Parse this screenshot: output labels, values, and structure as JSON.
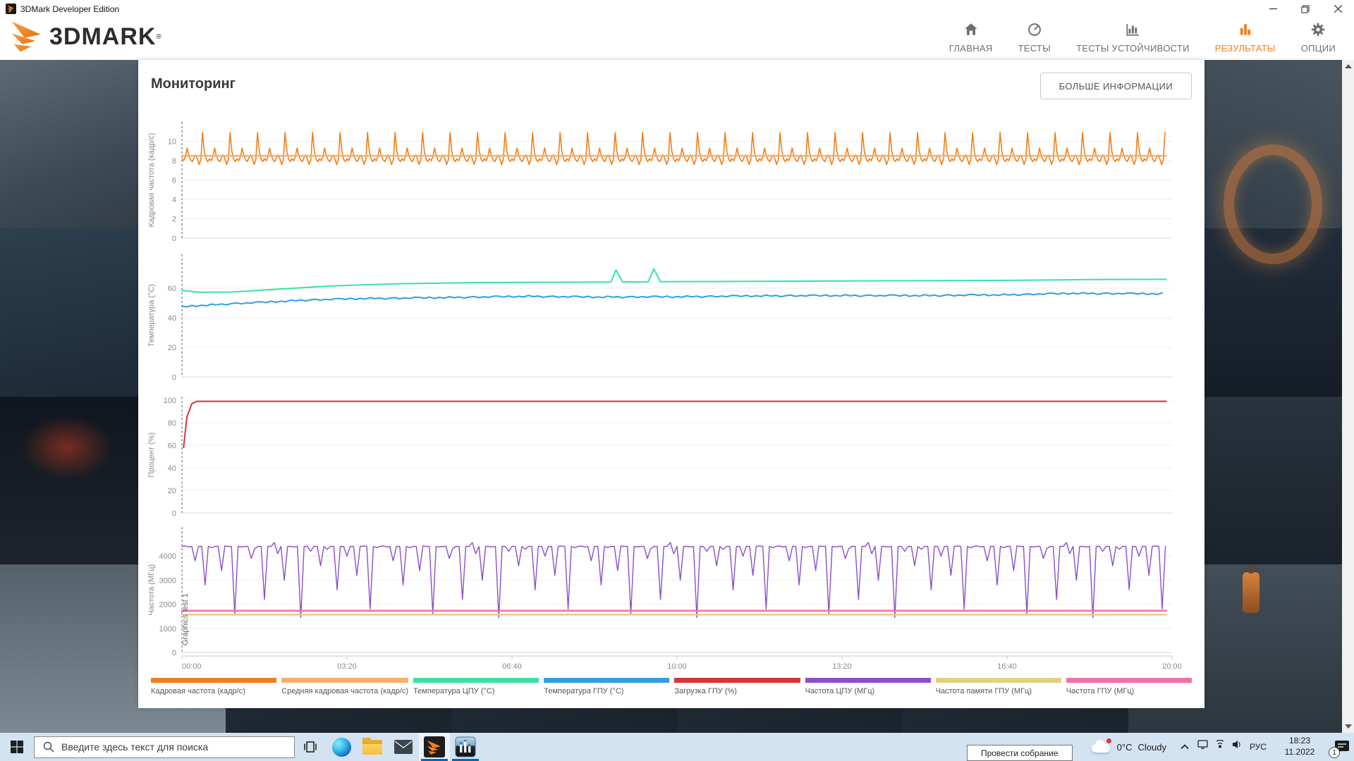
{
  "window": {
    "title": "3DMark Developer Edition"
  },
  "header": {
    "logo_text": "3DMARK",
    "logo_reg": "®",
    "nav": [
      {
        "label": "ГЛАВНАЯ",
        "icon": "home",
        "active": false
      },
      {
        "label": "ТЕСТЫ",
        "icon": "gauge",
        "active": false
      },
      {
        "label": "ТЕСТЫ УСТОЙЧИВОСТИ",
        "icon": "chart-axis",
        "active": false
      },
      {
        "label": "РЕЗУЛЬТАТЫ",
        "icon": "bar-chart",
        "active": true
      },
      {
        "label": "ОПЦИИ",
        "icon": "gear",
        "active": false
      }
    ]
  },
  "page": {
    "title": "Мониторинг",
    "more_info_button": "БОЛЬШЕ ИНФОРМАЦИИ"
  },
  "chart_data": {
    "type": "line",
    "x_axis": {
      "range_seconds": [
        0,
        1200
      ],
      "tick_labels": [
        "00:00",
        "03:20",
        "06:40",
        "10:00",
        "13:20",
        "16:40",
        "20:00"
      ]
    },
    "charts": [
      {
        "ylabel": "Кадровая частота (кадр/с)",
        "y_ticks": [
          0,
          2,
          4,
          6,
          8,
          10
        ],
        "y_max": 12,
        "series": [
          {
            "name": "Кадровая частота (кадр/с)",
            "color": "#ef7f1a",
            "width": 1.6,
            "type": "pattern",
            "step": 2.083,
            "repeats": 36,
            "values": [
              8.2,
              8.0,
              8.4,
              9.3,
              8.5,
              8.1,
              7.9,
              8.3,
              8.6,
              8.2,
              7.6,
              8.1,
              10.9,
              9.0,
              8.2,
              7.9
            ]
          },
          {
            "name": "Средняя кадровая частота (кадр/с)",
            "color": "#f7b06b",
            "width": 2.5,
            "type": "constant",
            "value": 8.5,
            "from": 0,
            "to": 1193
          }
        ]
      },
      {
        "ylabel": "Температура (°C)",
        "y_ticks": [
          0,
          20,
          40,
          60
        ],
        "y_max": 83,
        "series": [
          {
            "name": "Температура ЦПУ (°C)",
            "color": "#3ae2a4",
            "width": 2,
            "type": "keypoints",
            "keypoints": [
              [
                0,
                58.5
              ],
              [
                20,
                57.3
              ],
              [
                60,
                57.4
              ],
              [
                120,
                59.5
              ],
              [
                180,
                61.5
              ],
              [
                260,
                63
              ],
              [
                360,
                63.8
              ],
              [
                440,
                64
              ],
              [
                520,
                64.2
              ],
              [
                526,
                72.3
              ],
              [
                534,
                64.3
              ],
              [
                565,
                64.2
              ],
              [
                572,
                73
              ],
              [
                580,
                64.4
              ],
              [
                700,
                64.6
              ],
              [
                850,
                65
              ],
              [
                1000,
                65.3
              ],
              [
                1100,
                65.8
              ],
              [
                1193,
                66
              ]
            ]
          },
          {
            "name": "Температура ГПУ (°C)",
            "color": "#2f9fe0",
            "width": 2,
            "type": "keypoints",
            "noise": {
              "step": 6,
              "values": [
                0.4,
                -0.3,
                0.5,
                -0.5,
                0.2,
                -0.4,
                0.6,
                -0.2,
                0.3,
                -0.6,
                0.1,
                0.4,
                -0.4,
                0.2,
                -0.3,
                0.5
              ]
            },
            "keypoints": [
              [
                0,
                47.5
              ],
              [
                30,
                48.5
              ],
              [
                60,
                49.5
              ],
              [
                100,
                50.5
              ],
              [
                150,
                52
              ],
              [
                220,
                53
              ],
              [
                300,
                53.5
              ],
              [
                420,
                54.5
              ],
              [
                500,
                54
              ],
              [
                600,
                54.2
              ],
              [
                700,
                54.8
              ],
              [
                800,
                55
              ],
              [
                900,
                55
              ],
              [
                1000,
                55.5
              ],
              [
                1080,
                56.5
              ],
              [
                1150,
                56.3
              ],
              [
                1193,
                56.2
              ]
            ]
          }
        ]
      },
      {
        "ylabel": "Процент (%)",
        "y_ticks": [
          0,
          20,
          40,
          60,
          80,
          100
        ],
        "y_max": 103,
        "series": [
          {
            "name": "Загрузка ГПУ (%)",
            "color": "#d43535",
            "width": 2,
            "type": "keypoints",
            "keypoints": [
              [
                2,
                58
              ],
              [
                6,
                85
              ],
              [
                12,
                97
              ],
              [
                18,
                99
              ],
              [
                1193,
                99
              ]
            ]
          }
        ]
      },
      {
        "ylabel": "Частота (МГц)",
        "y_ticks": [
          0,
          1000,
          2000,
          3000,
          4000
        ],
        "y_max": 5200,
        "annotation": "Graphics test 1",
        "series": [
          {
            "name": "Частота ЦПУ (МГц)",
            "color": "#8b4fc8",
            "width": 1.4,
            "type": "pattern",
            "step": 4,
            "repeats": 5,
            "values": [
              4400,
              4420,
              4380,
              4400,
              3800,
              4400,
              4400,
              2800,
              4400,
              4350,
              4400,
              4400,
              3400,
              4420,
              4400,
              4400,
              1600,
              4400,
              4380,
              4400,
              4400,
              3900,
              4300,
              4400,
              4400,
              2200,
              4400,
              4400,
              4560,
              4100,
              4400,
              3000,
              4400,
              4400,
              4380,
              4400,
              1450,
              4400,
              4400,
              4200,
              4400,
              4400,
              3600,
              4400,
              4280,
              4400,
              4400,
              2600,
              4400,
              4400,
              4000,
              4400,
              4400,
              3200,
              4400,
              4420,
              4400,
              1800,
              4400,
              4350
            ]
          },
          {
            "name": "Частота памяти ГПУ (МГц)",
            "color": "#e5cd84",
            "width": 2.5,
            "type": "constant",
            "value": 1570,
            "from": 0,
            "to": 1193
          },
          {
            "name": "Частота ГПУ (МГц)",
            "color": "#f070a8",
            "width": 2.5,
            "type": "constant",
            "value": 1730,
            "from": 0,
            "to": 1193
          }
        ]
      }
    ],
    "legend": [
      {
        "label": "Кадровая частота (кадр/с)",
        "color": "#ef7f1a"
      },
      {
        "label": "Средняя кадровая частота (кадр/с)",
        "color": "#f7b06b"
      },
      {
        "label": "Температура ЦПУ (°C)",
        "color": "#3ae2a4"
      },
      {
        "label": "Температура ГПУ (°C)",
        "color": "#2f9fe0"
      },
      {
        "label": "Загрузка ГПУ (%)",
        "color": "#d43535"
      },
      {
        "label": "Частота ЦПУ (МГц)",
        "color": "#8b4fc8"
      },
      {
        "label": "Частота памяти ГПУ (МГц)",
        "color": "#e5cd84"
      },
      {
        "label": "Частота ГПУ (МГц)",
        "color": "#f070a8"
      }
    ]
  },
  "taskbar": {
    "search_placeholder": "Введите здесь текст для поиска",
    "weather": {
      "temp": "0°C",
      "condition": "Cloudy"
    },
    "language": "РУС",
    "tooltip": "Провести собрание",
    "time": "18:23",
    "date": "11.2022",
    "notification_badge": "1"
  }
}
